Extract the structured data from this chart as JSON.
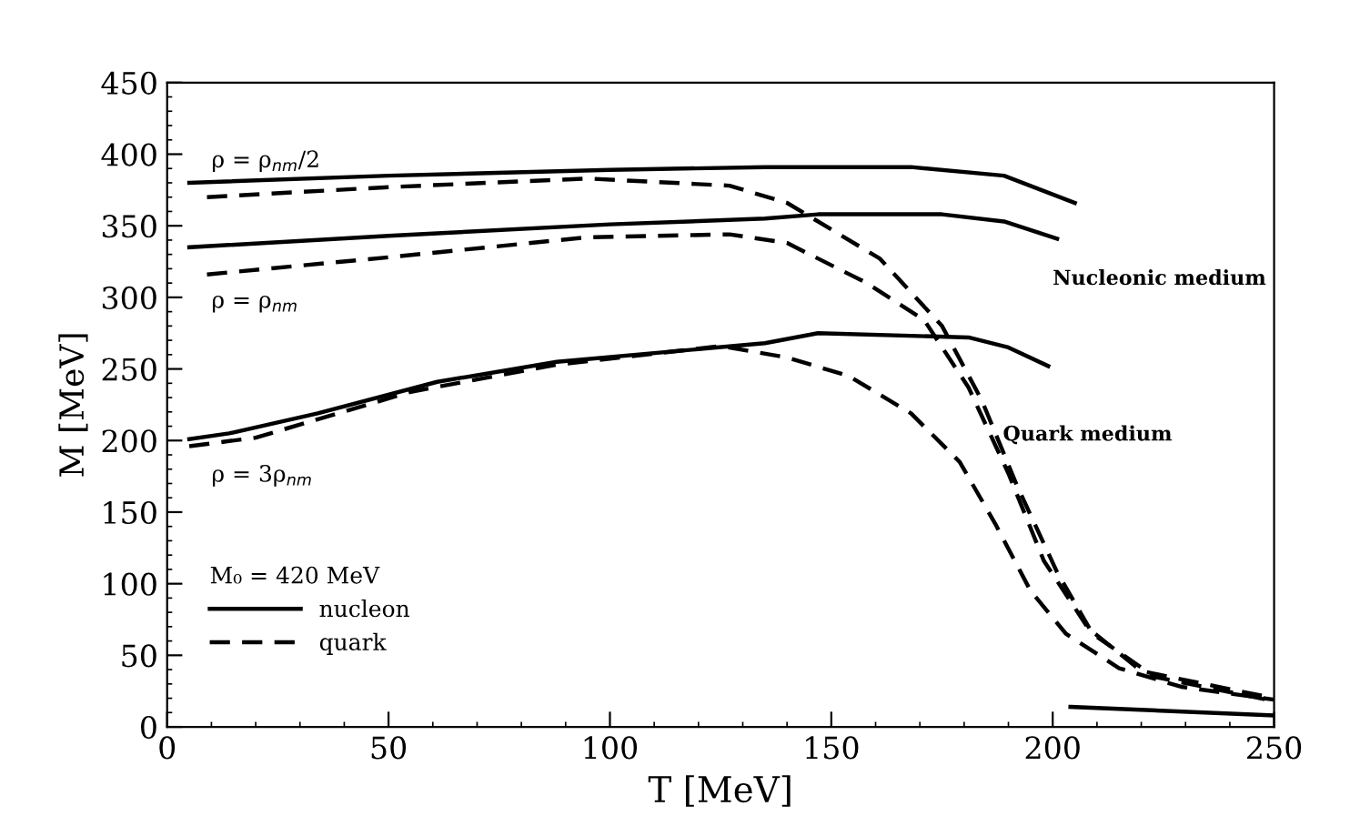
{
  "chart_data": {
    "type": "line",
    "xlabel": "T [MeV]",
    "ylabel": "M [MeV]",
    "legend_title": "M₀ = 420 MeV",
    "xlim": [
      0,
      250
    ],
    "ylim": [
      0,
      450
    ],
    "xticks": [
      0,
      50,
      100,
      150,
      200,
      250
    ],
    "yticks": [
      0,
      50,
      100,
      150,
      200,
      250,
      300,
      350,
      400,
      450
    ],
    "grid": false,
    "legend": "lower left",
    "marker": "none",
    "series": [
      {
        "name": "nucleon",
        "color": "#000000",
        "line_style": "solid",
        "x": [
          5,
          50,
          100,
          135,
          168,
          189,
          205
        ],
        "values": [
          380,
          385,
          389,
          391,
          391,
          385,
          366
        ]
      },
      {
        "color": "#000000",
        "line_style": "solid",
        "x": [
          5,
          50,
          100,
          135,
          147,
          175,
          189,
          201
        ],
        "values": [
          335,
          343,
          351,
          355,
          358,
          358,
          353,
          341
        ]
      },
      {
        "color": "#000000",
        "line_style": "solid",
        "x": [
          5,
          14,
          34,
          61,
          88,
          135,
          147,
          181,
          190,
          199
        ],
        "values": [
          201,
          205,
          219,
          241,
          255,
          268,
          275,
          272,
          265,
          252
        ]
      },
      {
        "color": "#000000",
        "line_style": "solid",
        "x": [
          204,
          250
        ],
        "values": [
          14,
          8
        ]
      },
      {
        "name": "quark",
        "color": "#000000",
        "line_style": "dashed",
        "x": [
          9,
          50,
          95,
          127,
          140,
          161,
          175,
          184,
          192,
          201,
          209,
          223,
          250
        ],
        "values": [
          370,
          377,
          383,
          378,
          366,
          327,
          280,
          228,
          168,
          108,
          65,
          35,
          18
        ]
      },
      {
        "color": "#000000",
        "line_style": "dashed",
        "x": [
          9,
          50,
          95,
          127,
          140,
          158,
          171,
          181,
          190,
          198,
          208,
          220,
          250
        ],
        "values": [
          316,
          328,
          342,
          344,
          338,
          310,
          284,
          237,
          177,
          116,
          69,
          39,
          20
        ]
      },
      {
        "color": "#000000",
        "line_style": "dashed",
        "x": [
          5,
          20,
          55,
          88,
          125,
          140,
          154,
          168,
          179,
          187,
          195,
          203,
          215,
          229,
          250
        ],
        "values": [
          196,
          202,
          234,
          253,
          266,
          258,
          245,
          219,
          185,
          142,
          95,
          65,
          41,
          28,
          19
        ]
      }
    ],
    "annotations": [
      "ρ = ρ$_{nm}$/2",
      "ρ = ρ$_{nm}$",
      "ρ = 3ρ$_{nm}$",
      "Nucleonic medium",
      "Quark medium"
    ]
  }
}
